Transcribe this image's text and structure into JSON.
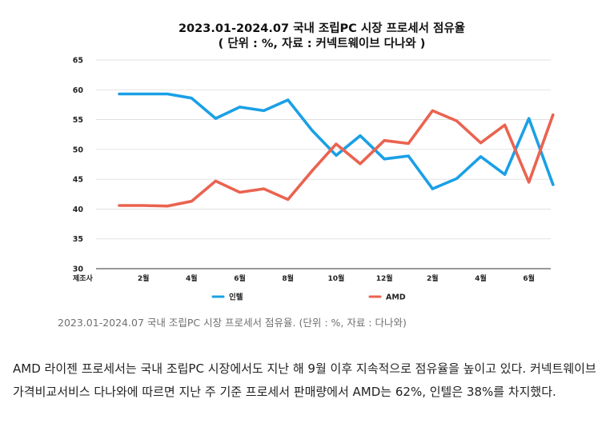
{
  "chart_data": {
    "type": "line",
    "title": "2023.01-2024.07 국내 조립PC 시장 프로세서 점유율",
    "subtitle": "( 단위 : %, 자료 : 커넥트웨이브 다나와 )",
    "xlabel": "",
    "ylabel": "",
    "ylim": [
      30,
      65
    ],
    "yticks": [
      30,
      35,
      40,
      45,
      50,
      55,
      60,
      65
    ],
    "grid": true,
    "legend_position": "bottom",
    "source_label": "제조사",
    "x": [
      "2023.01",
      "2023.02",
      "2023.03",
      "2023.04",
      "2023.05",
      "2023.06",
      "2023.07",
      "2023.08",
      "2023.09",
      "2023.10",
      "2023.11",
      "2023.12",
      "2024.01",
      "2024.02",
      "2024.03",
      "2024.04",
      "2024.05",
      "2024.06",
      "2024.07"
    ],
    "x_tick_labels": [
      {
        "index": 1,
        "label": "2월"
      },
      {
        "index": 3,
        "label": "4월"
      },
      {
        "index": 5,
        "label": "6월"
      },
      {
        "index": 7,
        "label": "8월"
      },
      {
        "index": 9,
        "label": "10월"
      },
      {
        "index": 11,
        "label": "12월"
      },
      {
        "index": 13,
        "label": "2월"
      },
      {
        "index": 15,
        "label": "4월"
      },
      {
        "index": 17,
        "label": "6월"
      }
    ],
    "series": [
      {
        "name": "인텔",
        "color": "#1aa0e6",
        "values": [
          59.3,
          59.3,
          59.3,
          58.6,
          55.2,
          57.1,
          56.5,
          58.3,
          53.2,
          49.0,
          52.3,
          48.4,
          48.9,
          43.4,
          45.1,
          48.8,
          45.8,
          55.2,
          44.1
        ]
      },
      {
        "name": "AMD",
        "color": "#ea6350",
        "values": [
          40.6,
          40.6,
          40.5,
          41.3,
          44.7,
          42.8,
          43.4,
          41.6,
          46.4,
          50.9,
          47.6,
          51.5,
          51.0,
          56.5,
          54.8,
          51.1,
          54.1,
          44.5,
          55.8
        ]
      }
    ]
  },
  "caption": "2023.01-2024.07 국내 조립PC 시장 프로세서 점유율. (단위 : %, 자료 : 다나와)",
  "article": {
    "paragraph": "AMD 라이젠 프로세서는 국내 조립PC 시장에서도 지난 해 9월 이후 지속적으로 점유율을 높이고 있다. 커넥트웨이브 가격비교서비스 다나와에 따르면 지난 주 기준 프로세서 판매량에서 AMD는 62%, 인텔은 38%를 차지했다."
  }
}
